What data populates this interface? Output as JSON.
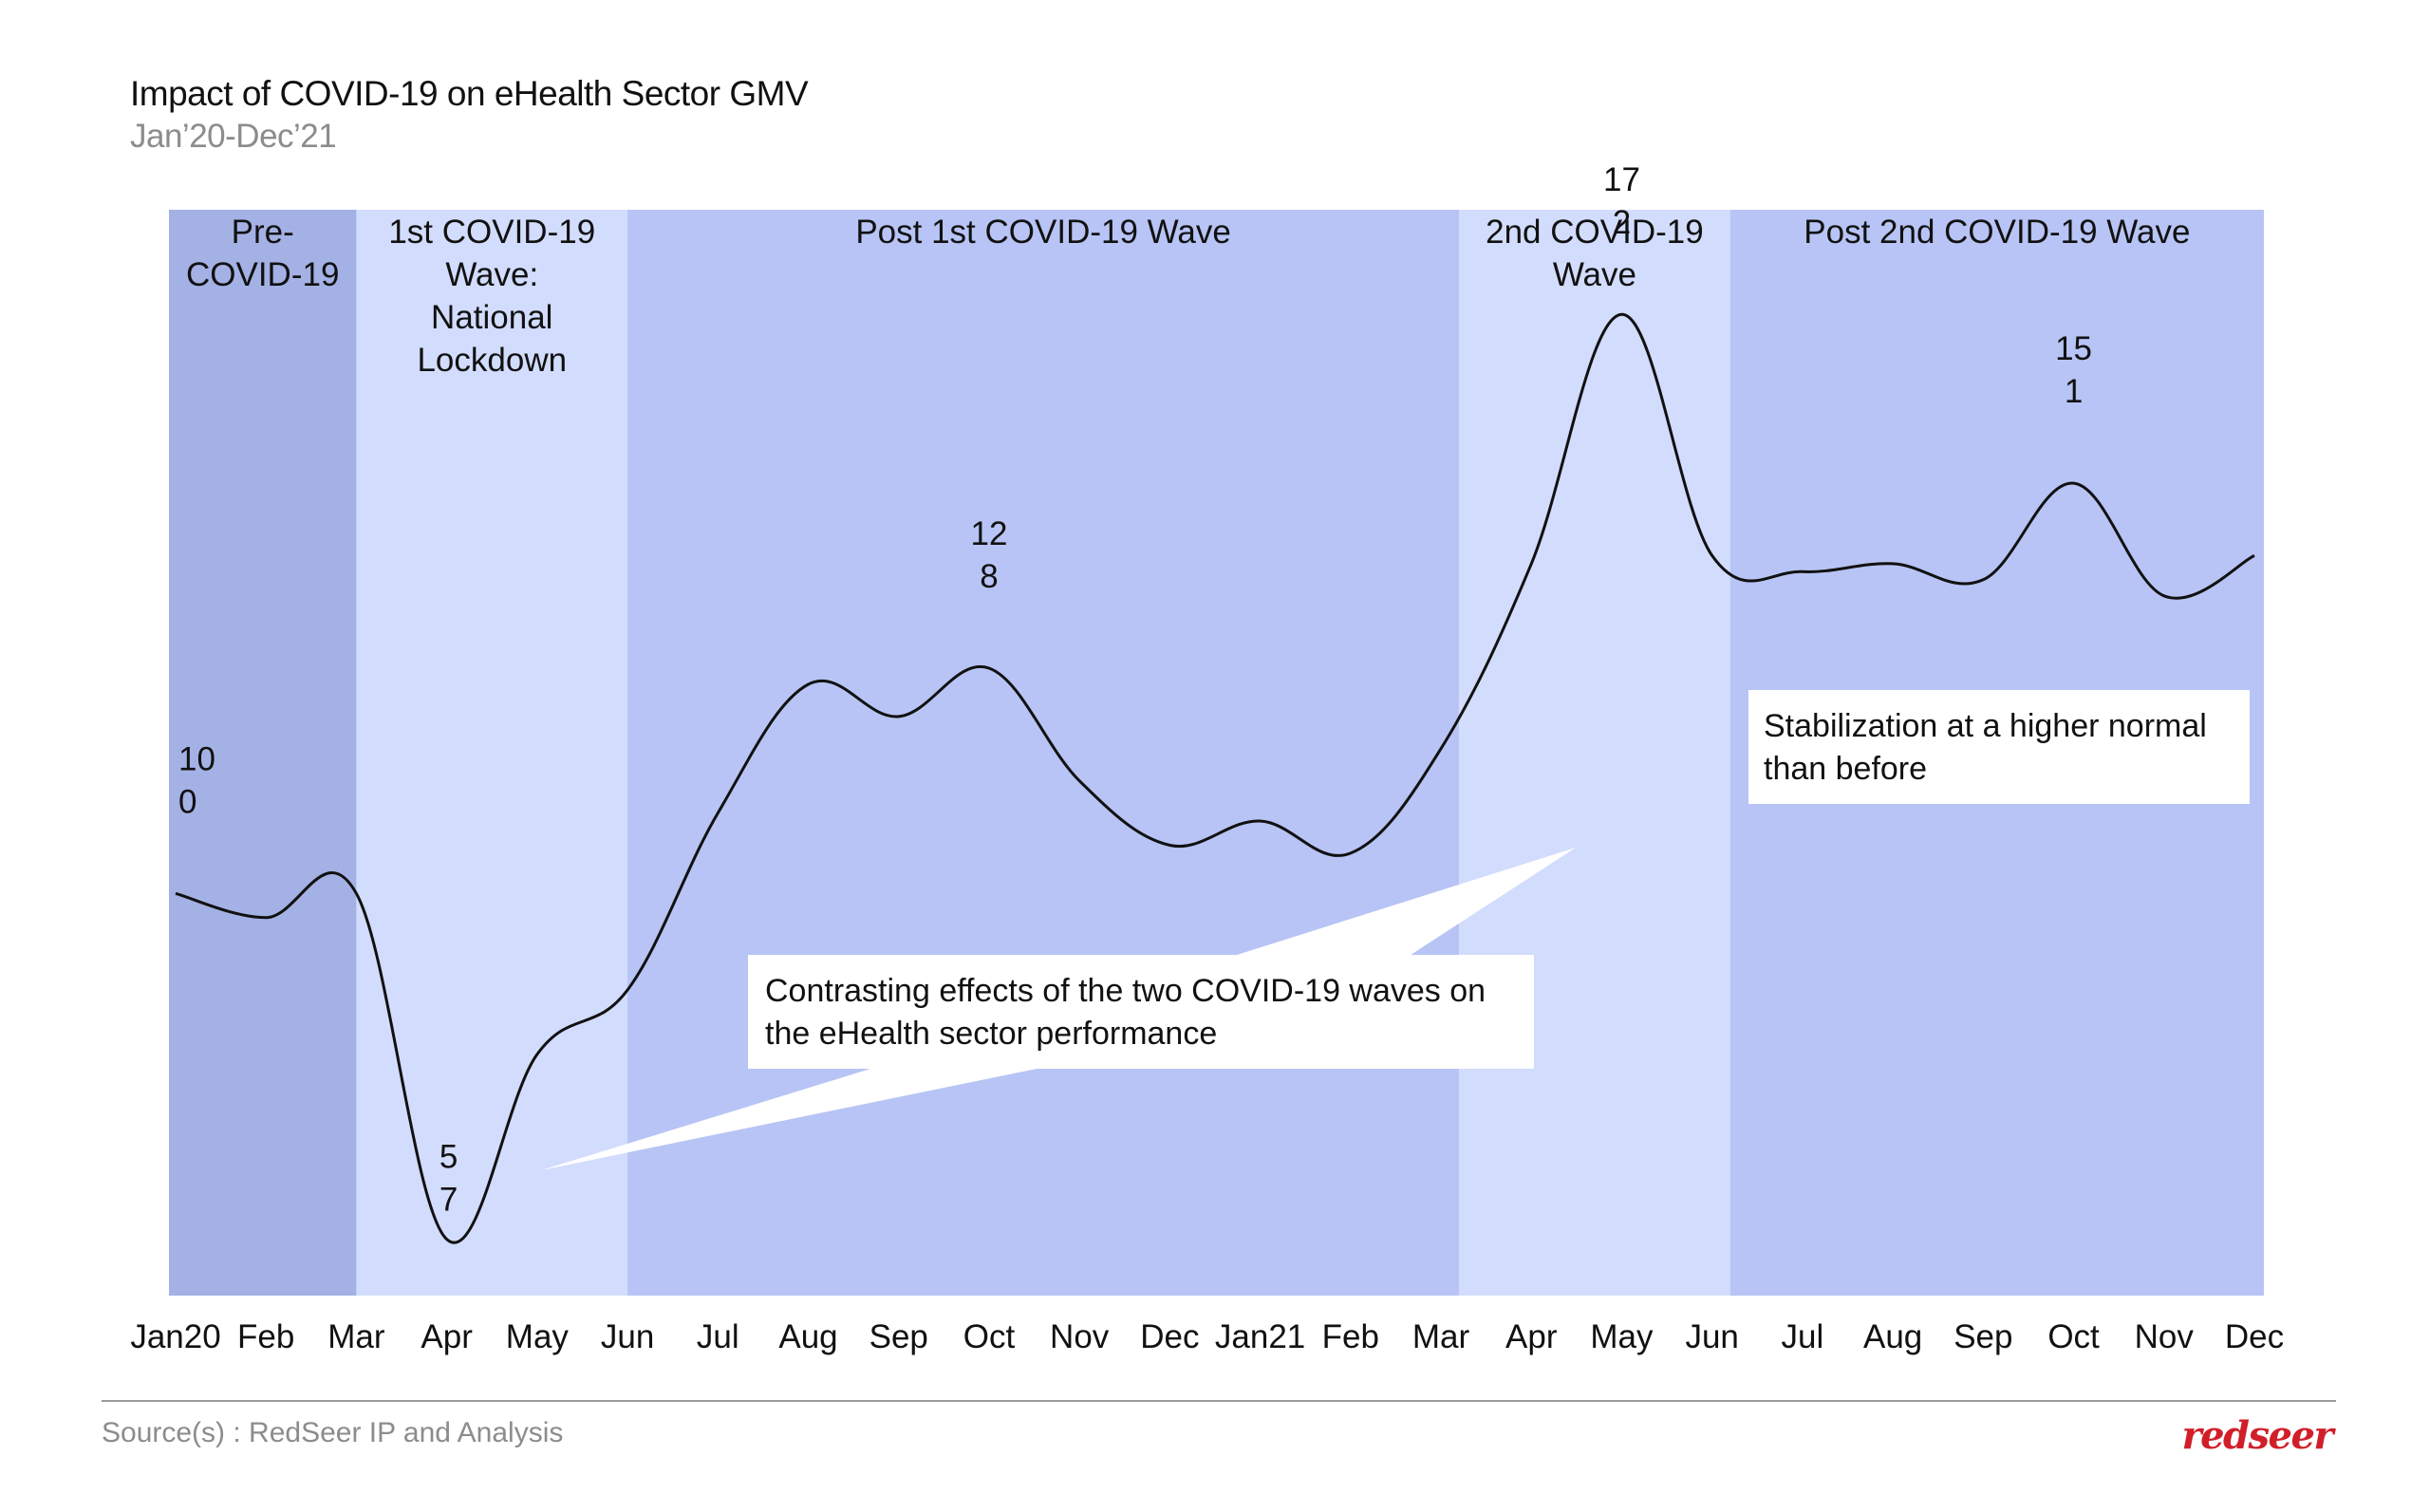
{
  "title": "Impact of COVID-19 on eHealth Sector GMV",
  "subtitle": "Jan’20-Dec’21",
  "source": "Source(s) : RedSeer IP and Analysis",
  "logo_text": "redseer",
  "colors": {
    "pre_covid": "#a4b1e4",
    "wave": "#d2dcfc",
    "post_wave": "#b7c4f5",
    "line": "#111111"
  },
  "chart_data": {
    "type": "line",
    "title": "Impact of COVID-19 on eHealth Sector GMV",
    "subtitle": "Jan’20-Dec’21",
    "x": [
      "Jan20",
      "Feb",
      "Mar",
      "Apr",
      "May",
      "Jun",
      "Jul",
      "Aug",
      "Sep",
      "Oct",
      "Nov",
      "Dec",
      "Jan21",
      "Feb",
      "Mar",
      "Apr",
      "May",
      "Jun",
      "Jul",
      "Aug",
      "Sep",
      "Oct",
      "Nov",
      "Dec"
    ],
    "values": [
      100,
      97,
      100,
      57,
      80,
      88,
      110,
      126,
      122,
      128,
      114,
      106,
      109,
      105,
      118,
      141,
      172,
      142,
      140,
      141,
      139,
      151,
      137,
      142
    ],
    "ylim": [
      50,
      185
    ],
    "grid": false,
    "phases": [
      {
        "label_lines": [
          "Pre-",
          "COVID-19"
        ],
        "start": 0,
        "end": 2,
        "kind": "pre_covid"
      },
      {
        "label_lines": [
          "1st COVID-19",
          "Wave:",
          "National",
          "Lockdown"
        ],
        "start": 2,
        "end": 5,
        "kind": "wave"
      },
      {
        "label_lines": [
          "Post 1st COVID-19 Wave"
        ],
        "start": 5,
        "end": 14.2,
        "kind": "post_wave"
      },
      {
        "label_lines": [
          "2nd COVID-19",
          "Wave"
        ],
        "start": 14.2,
        "end": 17.2,
        "kind": "wave"
      },
      {
        "label_lines": [
          "Post 2nd COVID-19 Wave"
        ],
        "start": 17.2,
        "end": 23,
        "kind": "post_wave"
      }
    ],
    "point_labels": [
      {
        "index": 0,
        "lines": [
          "10",
          "0"
        ]
      },
      {
        "index": 3,
        "lines": [
          "5",
          "7"
        ]
      },
      {
        "index": 9,
        "lines": [
          "12",
          "8"
        ]
      },
      {
        "index": 16,
        "lines": [
          "17",
          "2"
        ]
      },
      {
        "index": 21,
        "lines": [
          "15",
          "1"
        ]
      }
    ],
    "annotations": [
      {
        "lines": [
          "Contrasting effects of the two COVID-19 waves on",
          "the eHealth sector performance"
        ]
      },
      {
        "lines": [
          "Stabilization at a higher normal",
          "than before"
        ]
      }
    ]
  }
}
